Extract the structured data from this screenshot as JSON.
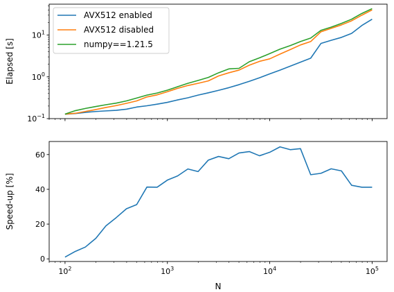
{
  "chart_data": [
    {
      "type": "line",
      "xscale": "log",
      "yscale": "log",
      "xlim": [
        70,
        140000
      ],
      "ylim": [
        0.1,
        55
      ],
      "xlabel": "",
      "ylabel": "Elapsed [s]",
      "x_ticks_labelled": false,
      "y_ticks": [
        {
          "value": 0.1,
          "base": "10",
          "exp": "−1"
        },
        {
          "value": 1,
          "base": "10",
          "exp": "0"
        },
        {
          "value": 10,
          "base": "10",
          "exp": "1"
        }
      ],
      "legend": "top-left",
      "x": [
        100,
        126,
        158,
        200,
        251,
        316,
        398,
        501,
        631,
        794,
        1000,
        1259,
        1585,
        1995,
        2512,
        3162,
        3981,
        5012,
        6310,
        7943,
        10000,
        12589,
        15849,
        19953,
        25119,
        31623,
        39811,
        50119,
        63096,
        79433,
        100000
      ],
      "series": [
        {
          "name": "AVX512 enabled",
          "color": "#1f77b4",
          "values": [
            0.127,
            0.132,
            0.141,
            0.148,
            0.153,
            0.158,
            0.168,
            0.189,
            0.203,
            0.222,
            0.245,
            0.28,
            0.315,
            0.365,
            0.415,
            0.475,
            0.55,
            0.65,
            0.78,
            0.95,
            1.18,
            1.45,
            1.8,
            2.25,
            2.8,
            6.3,
            7.5,
            8.8,
            11.0,
            17.0,
            24.0
          ]
        },
        {
          "name": "AVX512 disabled",
          "color": "#ff7f0e",
          "values": [
            0.128,
            0.134,
            0.148,
            0.165,
            0.185,
            0.205,
            0.232,
            0.265,
            0.33,
            0.37,
            0.44,
            0.53,
            0.62,
            0.7,
            0.8,
            1.05,
            1.25,
            1.45,
            1.9,
            2.35,
            2.7,
            3.5,
            4.5,
            5.8,
            7.0,
            12.0,
            14.5,
            17.5,
            22.0,
            30.0,
            40.0
          ]
        },
        {
          "name": "numpy==1.21.5",
          "color": "#2ca02c",
          "values": [
            0.128,
            0.155,
            0.175,
            0.195,
            0.215,
            0.235,
            0.265,
            0.31,
            0.365,
            0.41,
            0.48,
            0.58,
            0.7,
            0.82,
            0.97,
            1.25,
            1.55,
            1.6,
            2.3,
            2.85,
            3.6,
            4.6,
            5.6,
            7.0,
            8.5,
            13.0,
            15.5,
            19.0,
            24.0,
            33.0,
            43.0
          ]
        }
      ]
    },
    {
      "type": "line",
      "xscale": "log",
      "yscale": "linear",
      "xlim": [
        70,
        140000
      ],
      "ylim": [
        -1.5,
        67.5
      ],
      "xlabel": "N",
      "ylabel": "Speed-up [%]",
      "x_ticks": [
        {
          "value": 100,
          "base": "10",
          "exp": "2"
        },
        {
          "value": 1000,
          "base": "10",
          "exp": "3"
        },
        {
          "value": 10000,
          "base": "10",
          "exp": "4"
        },
        {
          "value": 100000,
          "base": "10",
          "exp": "5"
        }
      ],
      "y_ticks": [
        0,
        20,
        40,
        60
      ],
      "x": [
        100,
        126,
        158,
        200,
        251,
        316,
        398,
        501,
        631,
        794,
        1000,
        1259,
        1585,
        1995,
        2512,
        3162,
        3981,
        5012,
        6310,
        7943,
        10000,
        12589,
        15849,
        19953,
        25119,
        31623,
        39811,
        50119,
        63096,
        79433,
        100000
      ],
      "series": [
        {
          "name": "AVX512 enabled",
          "color": "#1f77b4",
          "values": [
            1,
            4.3,
            6.8,
            11.8,
            19,
            23.7,
            28.8,
            31.2,
            41.3,
            41.2,
            45.3,
            47.7,
            51.7,
            50.2,
            56.8,
            58.9,
            57.6,
            60.9,
            61.7,
            59.3,
            61.3,
            64.4,
            62.8,
            63.4,
            48.4,
            49.2,
            51.8,
            50.6,
            42.3,
            41.2,
            41.2
          ]
        }
      ]
    }
  ]
}
